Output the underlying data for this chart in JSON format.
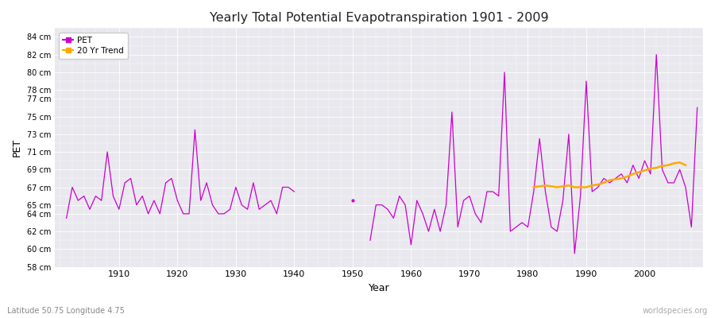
{
  "title": "Yearly Total Potential Evapotranspiration 1901 - 2009",
  "xlabel": "Year",
  "ylabel": "PET",
  "subtitle_left": "Latitude 50.75 Longitude 4.75",
  "subtitle_right": "worldspecies.org",
  "pet_color": "#cc00cc",
  "trend_color": "#ffaa00",
  "fig_bg_color": "#ffffff",
  "plot_bg_color": "#e8e8ee",
  "ylim_min": 58,
  "ylim_max": 85,
  "yticks": [
    58,
    60,
    62,
    64,
    65,
    67,
    69,
    71,
    73,
    75,
    77,
    78,
    80,
    82,
    84
  ],
  "xticks": [
    1910,
    1920,
    1930,
    1940,
    1950,
    1960,
    1970,
    1980,
    1990,
    2000
  ],
  "xlim": [
    1899,
    2010
  ],
  "pet_segments": [
    {
      "years": [
        1901,
        1902,
        1903,
        1904,
        1905,
        1906,
        1907,
        1908,
        1909,
        1910,
        1911,
        1912,
        1913,
        1914,
        1915,
        1916,
        1917,
        1918,
        1919,
        1920,
        1921,
        1922,
        1923,
        1924,
        1925,
        1926,
        1927,
        1928,
        1929,
        1930,
        1931,
        1932,
        1933,
        1934,
        1935,
        1936,
        1937,
        1938,
        1939,
        1940
      ],
      "values": [
        63.5,
        67.0,
        65.5,
        66.0,
        64.5,
        66.0,
        65.5,
        71.0,
        66.0,
        64.5,
        67.5,
        68.0,
        65.0,
        66.0,
        64.0,
        65.5,
        64.0,
        67.5,
        68.0,
        65.5,
        64.0,
        64.0,
        73.5,
        65.5,
        67.5,
        65.0,
        64.0,
        64.0,
        64.5,
        67.0,
        65.0,
        64.5,
        67.5,
        64.5,
        65.0,
        65.5,
        64.0,
        67.0,
        67.0,
        66.5
      ]
    },
    {
      "years": [
        1950
      ],
      "values": [
        65.5
      ]
    },
    {
      "years": [
        1953,
        1954,
        1955,
        1956,
        1957,
        1958,
        1959,
        1960,
        1961,
        1962,
        1963,
        1964,
        1965,
        1966,
        1967,
        1968,
        1969,
        1970,
        1971,
        1972,
        1973,
        1974,
        1975,
        1976,
        1977,
        1978,
        1979,
        1980,
        1981,
        1982,
        1983,
        1984,
        1985,
        1986,
        1987,
        1988,
        1989,
        1990,
        1991,
        1992,
        1993,
        1994,
        1995,
        1996,
        1997,
        1998,
        1999,
        2000,
        2001,
        2002,
        2003,
        2004,
        2005,
        2006,
        2007,
        2008,
        2009
      ],
      "values": [
        61.0,
        65.0,
        65.0,
        64.5,
        63.5,
        66.0,
        65.0,
        60.5,
        65.5,
        64.0,
        62.0,
        64.5,
        62.0,
        65.0,
        75.5,
        62.5,
        65.5,
        66.0,
        64.0,
        63.0,
        66.5,
        66.5,
        66.0,
        80.0,
        62.0,
        62.5,
        63.0,
        62.5,
        66.5,
        72.5,
        66.5,
        62.5,
        62.0,
        65.5,
        73.0,
        59.5,
        66.0,
        79.0,
        66.5,
        67.0,
        68.0,
        67.5,
        68.0,
        68.5,
        67.5,
        69.5,
        68.0,
        70.0,
        68.5,
        82.0,
        69.0,
        67.5,
        67.5,
        69.0,
        67.0,
        62.5,
        76.0
      ]
    }
  ],
  "trend_years": [
    1981,
    1982,
    1983,
    1984,
    1985,
    1986,
    1987,
    1988,
    1989,
    1990,
    1991,
    1992,
    1993,
    1994,
    1995,
    1996,
    1997,
    1998,
    1999,
    2000,
    2001,
    2002,
    2003,
    2004,
    2005,
    2006,
    2007
  ],
  "trend_values": [
    67.0,
    67.1,
    67.2,
    67.1,
    67.0,
    67.1,
    67.2,
    67.0,
    67.0,
    67.0,
    67.2,
    67.3,
    67.5,
    67.8,
    67.9,
    68.0,
    68.2,
    68.5,
    68.7,
    68.9,
    69.1,
    69.2,
    69.4,
    69.5,
    69.7,
    69.8,
    69.5
  ]
}
